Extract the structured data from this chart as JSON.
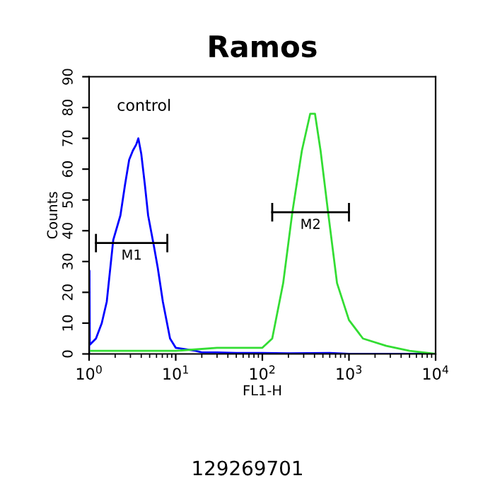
{
  "chart_data": {
    "type": "line",
    "title": "Ramos",
    "xlabel": "FL1-H",
    "ylabel": "Counts",
    "log": "x",
    "xlim": [
      1,
      10000
    ],
    "ylim": [
      0,
      90
    ],
    "xticks": [
      {
        "value": 1,
        "label": "10$^{0}$"
      },
      {
        "value": 10,
        "label": "10$^{1}$"
      },
      {
        "value": 100,
        "label": "10$^{2}$"
      },
      {
        "value": 1000,
        "label": "10$^{3}$"
      },
      {
        "value": 10000,
        "label": "10$^{4}$"
      }
    ],
    "yticks": [
      0,
      10,
      20,
      30,
      40,
      50,
      60,
      70,
      80,
      90
    ],
    "grid": false,
    "legend": false,
    "marker": "none",
    "line_style": "solid",
    "series": [
      {
        "color": "#0000ff",
        "x": [
          1.0,
          1.01,
          1.02,
          1.2,
          1.4,
          1.6,
          1.9,
          2.3,
          2.6,
          2.9,
          3.2,
          3.5,
          3.7,
          4.0,
          4.4,
          4.8,
          5.6,
          6.2,
          7.1,
          8.6,
          10,
          13,
          17,
          20,
          30,
          50,
          100,
          200,
          600,
          1000,
          10000
        ],
        "values": [
          0,
          27,
          3,
          5,
          10,
          17,
          37,
          45,
          55,
          63,
          66,
          68,
          70,
          65,
          55,
          45,
          35,
          28,
          17,
          5,
          2,
          1.5,
          1,
          0.5,
          0.5,
          0.3,
          0.3,
          0.2,
          0.3,
          0,
          0
        ]
      },
      {
        "color": "#33dd33",
        "x": [
          1.0,
          10,
          30,
          100,
          130,
          174,
          222,
          286,
          357,
          405,
          470,
          574,
          728,
          1000,
          1450,
          2700,
          5000,
          10000
        ],
        "values": [
          1,
          1,
          2,
          2,
          5,
          23,
          46,
          66,
          78,
          78,
          66,
          46,
          23,
          11,
          5,
          2.6,
          1,
          0
        ]
      },
      {
        "type": "line",
        "name": "M1",
        "color": "#000000",
        "x": [
          1.2,
          8
        ],
        "values": [
          36,
          36
        ],
        "errors": [
          3,
          3
        ]
      },
      {
        "type": "line",
        "name": "M2",
        "color": "#000000",
        "x": [
          130,
          1000
        ],
        "values": [
          46,
          46
        ],
        "errors": [
          3,
          3
        ]
      }
    ],
    "annotations": [
      "control",
      "129269701"
    ]
  }
}
